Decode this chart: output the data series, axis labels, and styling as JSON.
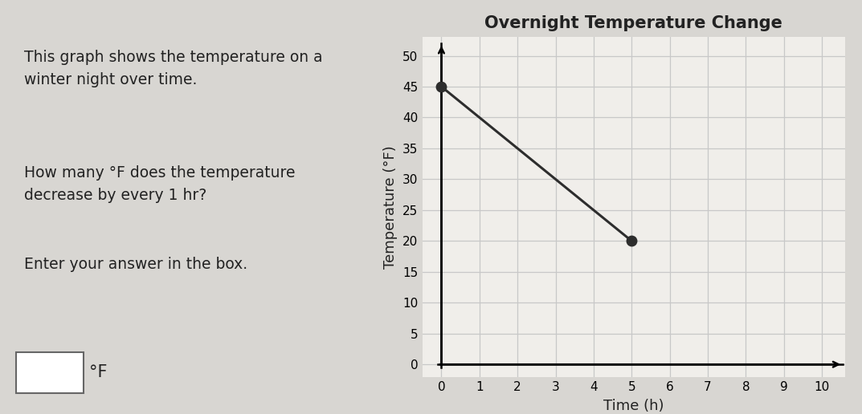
{
  "title": "Overnight Temperature Change",
  "xlabel": "Time (h)",
  "ylabel": "Temperature (°F)",
  "x_data": [
    0,
    5
  ],
  "y_data": [
    45,
    20
  ],
  "xlim": [
    -0.5,
    10.6
  ],
  "ylim": [
    -2,
    53
  ],
  "xticks": [
    0,
    1,
    2,
    3,
    4,
    5,
    6,
    7,
    8,
    9,
    10
  ],
  "yticks": [
    0,
    5,
    10,
    15,
    20,
    25,
    30,
    35,
    40,
    45,
    50
  ],
  "line_color": "#2d2d2d",
  "marker_color": "#2d2d2d",
  "marker_size": 9,
  "line_width": 2.2,
  "grid_color": "#c8c8c8",
  "plot_bg_color": "#f0eeea",
  "outer_bg_color": "#d8d6d2",
  "title_fontsize": 15,
  "label_fontsize": 13,
  "tick_fontsize": 11,
  "text_color": "#222222",
  "left_text_1": "This graph shows the temperature on a\nwinter night over time.",
  "left_text_2": "How many °F does the temperature\ndecrease by every 1 hr?",
  "left_text_3": "Enter your answer in the box.",
  "box_label": "°F"
}
